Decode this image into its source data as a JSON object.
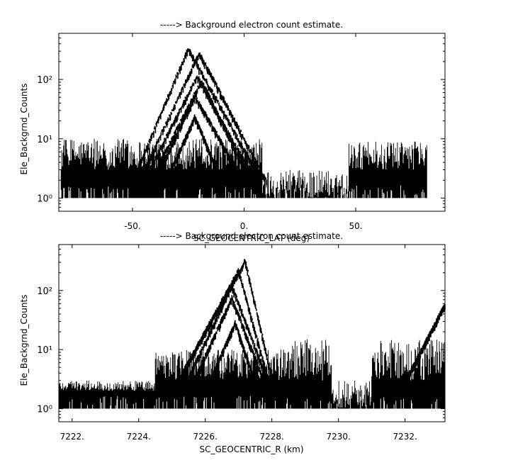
{
  "chart_data": [
    {
      "type": "line",
      "title": "-----> Background electron count estimate.",
      "xlabel": "SC_GEOCENTRIC_LAT (deg)",
      "ylabel": "Ele_Backgrnd_Counts",
      "y_scale": "log",
      "xlim": [
        -83,
        90
      ],
      "ylim": [
        0.6,
        600
      ],
      "x_ticks": [
        -50,
        0,
        50
      ],
      "x_tick_labels": [
        "-50.",
        "0.",
        "50."
      ],
      "y_ticks": [
        1,
        10,
        100
      ],
      "y_tick_labels": [
        "10⁰",
        "10¹",
        "10²"
      ],
      "grid": false,
      "color": "#000000",
      "noise_floor": 1,
      "series": [
        {
          "kind": "noise_band",
          "x": [
            -82,
            8
          ],
          "values": [
            3,
            10
          ]
        },
        {
          "kind": "noise_band",
          "x": [
            8,
            47
          ],
          "values": [
            1,
            3
          ]
        },
        {
          "kind": "noise_band",
          "x": [
            47,
            82
          ],
          "values": [
            3,
            9
          ]
        },
        {
          "kind": "arc",
          "x": [
            -50,
            -25,
            8
          ],
          "values": [
            2,
            350,
            2
          ]
        },
        {
          "kind": "arc",
          "x": [
            -47,
            -20,
            10
          ],
          "values": [
            2,
            300,
            2
          ]
        },
        {
          "kind": "arc",
          "x": [
            -45,
            -21,
            5
          ],
          "values": [
            2,
            120,
            2
          ]
        },
        {
          "kind": "arc",
          "x": [
            -42,
            -19,
            3
          ],
          "values": [
            2,
            100,
            2
          ]
        },
        {
          "kind": "arc",
          "x": [
            -40,
            -22,
            0
          ],
          "values": [
            2,
            55,
            2
          ]
        },
        {
          "kind": "arc",
          "x": [
            -35,
            -22,
            -10
          ],
          "values": [
            2,
            25,
            2
          ]
        }
      ]
    },
    {
      "type": "line",
      "title": "-----> Background electron count estimate.",
      "xlabel": "SC_GEOCENTRIC_R (km)",
      "ylabel": "Ele_Backgrnd_Counts",
      "y_scale": "log",
      "xlim": [
        7221.6,
        7233.2
      ],
      "ylim": [
        0.6,
        600
      ],
      "x_ticks": [
        7222,
        7224,
        7226,
        7228,
        7230,
        7232
      ],
      "x_tick_labels": [
        "7222.",
        "7224.",
        "7226.",
        "7228.",
        "7230.",
        "7232."
      ],
      "y_ticks": [
        1,
        10,
        100
      ],
      "y_tick_labels": [
        "10⁰",
        "10¹",
        "10²"
      ],
      "grid": false,
      "color": "#000000",
      "noise_floor": 1,
      "series": [
        {
          "kind": "noise_band",
          "x": [
            7221.6,
            7224.5
          ],
          "values": [
            2,
            3
          ]
        },
        {
          "kind": "noise_band",
          "x": [
            7224.5,
            7228.6
          ],
          "values": [
            3,
            10
          ]
        },
        {
          "kind": "noise_band",
          "x": [
            7228.6,
            7229.8
          ],
          "values": [
            3,
            15
          ]
        },
        {
          "kind": "noise_band",
          "x": [
            7229.8,
            7231.0
          ],
          "values": [
            1,
            3
          ]
        },
        {
          "kind": "noise_band",
          "x": [
            7231.0,
            7233.2
          ],
          "values": [
            3,
            15
          ]
        },
        {
          "kind": "arc",
          "x": [
            7225.0,
            7227.2,
            7228.1
          ],
          "values": [
            2,
            340,
            2
          ]
        },
        {
          "kind": "arc",
          "x": [
            7225.0,
            7227.0,
            7228.0
          ],
          "values": [
            2,
            230,
            2
          ]
        },
        {
          "kind": "arc",
          "x": [
            7225.3,
            7226.8,
            7228.0
          ],
          "values": [
            2,
            130,
            2
          ]
        },
        {
          "kind": "arc",
          "x": [
            7225.5,
            7226.8,
            7227.9
          ],
          "values": [
            2,
            80,
            2
          ]
        },
        {
          "kind": "arc",
          "x": [
            7226.0,
            7226.9,
            7227.6
          ],
          "values": [
            2,
            30,
            2
          ]
        },
        {
          "kind": "arc",
          "x": [
            7232.0,
            7233.2,
            7233.2
          ],
          "values": [
            3,
            60,
            60
          ]
        }
      ]
    }
  ]
}
